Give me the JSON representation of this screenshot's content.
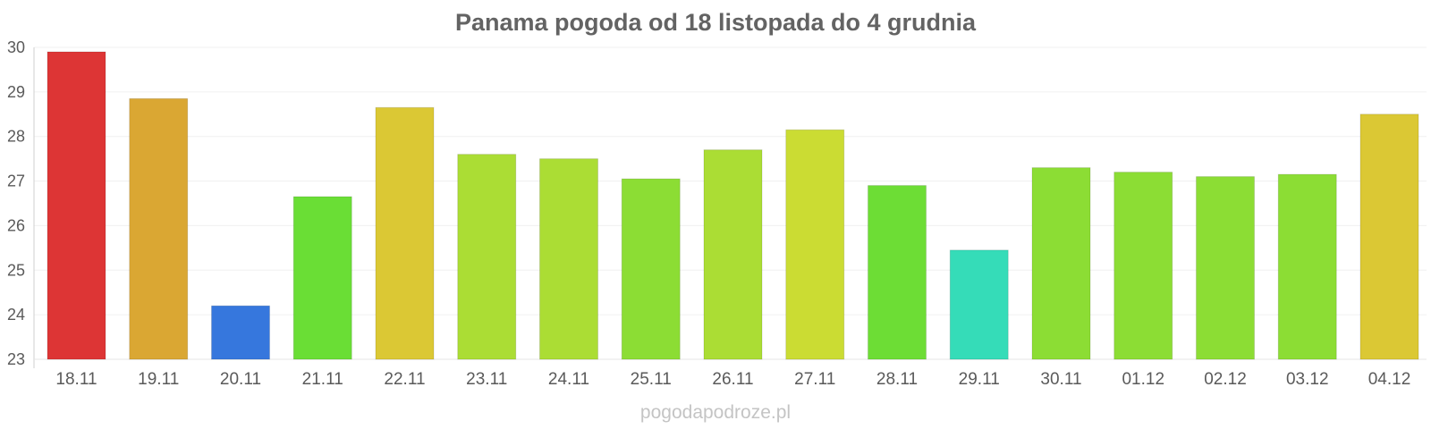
{
  "chart_data": {
    "type": "bar",
    "title": "Panama pogoda od 18 listopada do 4 grudnia",
    "xlabel": "",
    "ylabel": "",
    "ylim": [
      23,
      30
    ],
    "yticks": [
      23,
      24,
      25,
      26,
      27,
      28,
      29,
      30
    ],
    "grid": true,
    "categories": [
      "18.11",
      "19.11",
      "20.11",
      "21.11",
      "22.11",
      "23.11",
      "24.11",
      "25.11",
      "26.11",
      "27.11",
      "28.11",
      "29.11",
      "30.11",
      "01.12",
      "02.12",
      "03.12",
      "04.12"
    ],
    "values": [
      29.9,
      28.85,
      24.2,
      26.65,
      28.65,
      27.6,
      27.5,
      27.05,
      27.7,
      28.15,
      26.9,
      25.45,
      27.3,
      27.2,
      27.1,
      27.15,
      28.5
    ],
    "bar_colors": [
      "#dd3535",
      "#daa733",
      "#3677dd",
      "#6ade35",
      "#dbc834",
      "#abdd34",
      "#abdd34",
      "#8cdd34",
      "#abdd34",
      "#cbdc33",
      "#6ddd35",
      "#35dcb8",
      "#8cdd34",
      "#8cdd34",
      "#8cdd34",
      "#8cdd34",
      "#dbc834"
    ]
  },
  "watermark": "pogodapodroze.pl"
}
